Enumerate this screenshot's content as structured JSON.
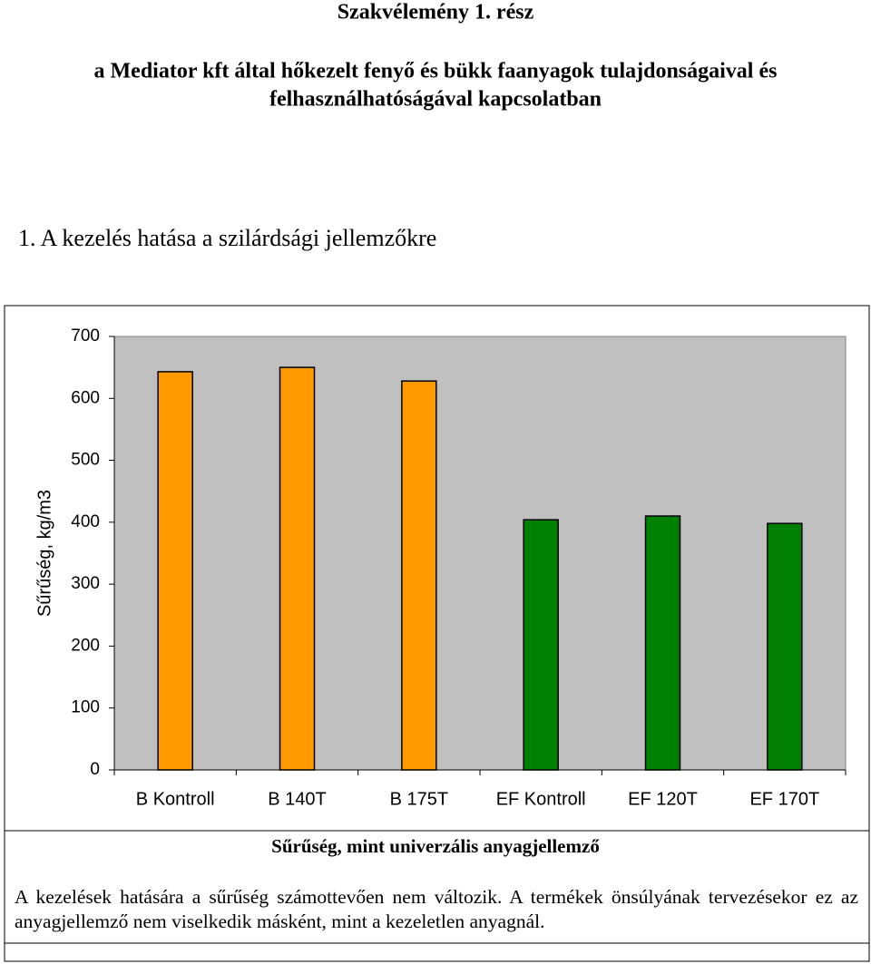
{
  "header": {
    "title": "Szakvélemény 1. rész",
    "subtitle_lines": [
      "a Mediator kft által hőkezelt fenyő és bükk faanyagok tulajdonságaival és",
      "felhasználhatóságával kapcsolatban"
    ]
  },
  "section_heading": "1. A kezelés hatása a szilárdsági jellemzőkre",
  "chart_data": {
    "type": "bar",
    "ylabel": "Sűrűség, kg/m3",
    "categories": [
      "B Kontroll",
      "B 140T",
      "B 175T",
      "EF Kontroll",
      "EF 120T",
      "EF 170T"
    ],
    "values": [
      643,
      650,
      628,
      404,
      410,
      398
    ],
    "colors": [
      "#FF9900",
      "#FF9900",
      "#FF9900",
      "#008000",
      "#008000",
      "#008000"
    ],
    "ylim": [
      0,
      700
    ],
    "yticks": [
      0,
      100,
      200,
      300,
      400,
      500,
      600,
      700
    ],
    "grid": false
  },
  "caption": "Sűrűség, mint univerzális anyagjellemző",
  "paragraph": "A kezelések hatására a sűrűség számottevően nem változik. A termékek önsúlyának tervezésekor ez az anyagjellemző nem viselkedik másként, mint a kezeletlen anyagnál."
}
